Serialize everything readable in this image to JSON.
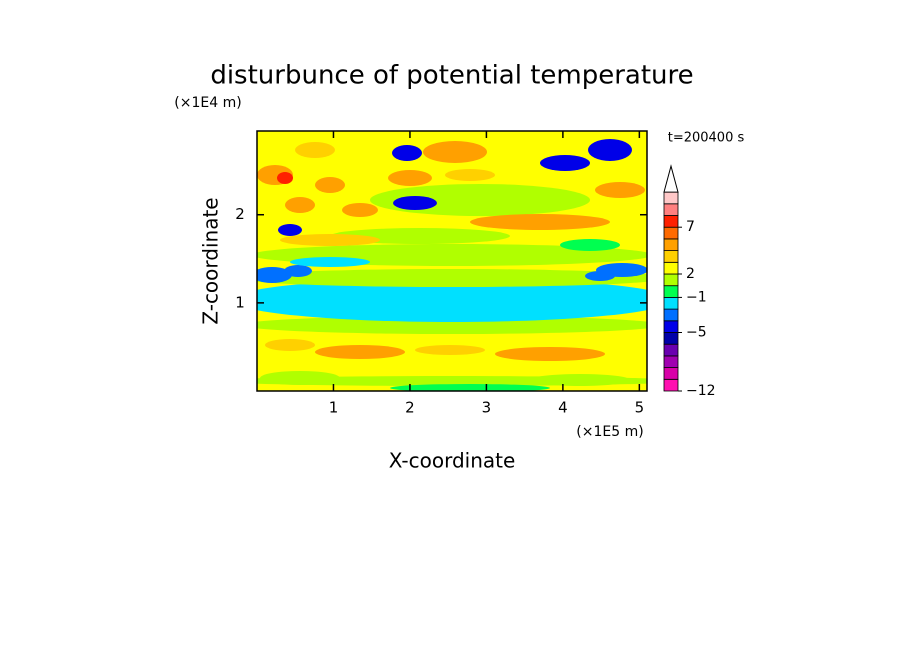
{
  "chart_data": {
    "type": "contour",
    "title": "disturbunce of potential temperature",
    "x_label": "X-coordinate",
    "y_label": "Z-coordinate",
    "x_unit": "(×1E5 m)",
    "y_unit": "(×1E4 m)",
    "annotation": "t=200400 s",
    "xlim": [
      0,
      5.1
    ],
    "ylim": [
      0,
      2.95
    ],
    "xticks": [
      1,
      2,
      3,
      4,
      5
    ],
    "yticks": [
      1,
      2
    ],
    "colorbar": {
      "colors": [
        "#ff10b0",
        "#d800a8",
        "#a000b0",
        "#6a00b0",
        "#0000a8",
        "#0000e8",
        "#0070ff",
        "#00e0ff",
        "#00ff50",
        "#b0ff00",
        "#ffff00",
        "#ffd000",
        "#ffa000",
        "#ff6a00",
        "#ff2000",
        "#ff8080",
        "#ffc8c8"
      ],
      "ticks": [
        {
          "value": -12,
          "label": "−12"
        },
        {
          "value": -5,
          "label": "−5"
        },
        {
          "value": -1,
          "label": "−1"
        },
        2,
        7
      ]
    }
  }
}
